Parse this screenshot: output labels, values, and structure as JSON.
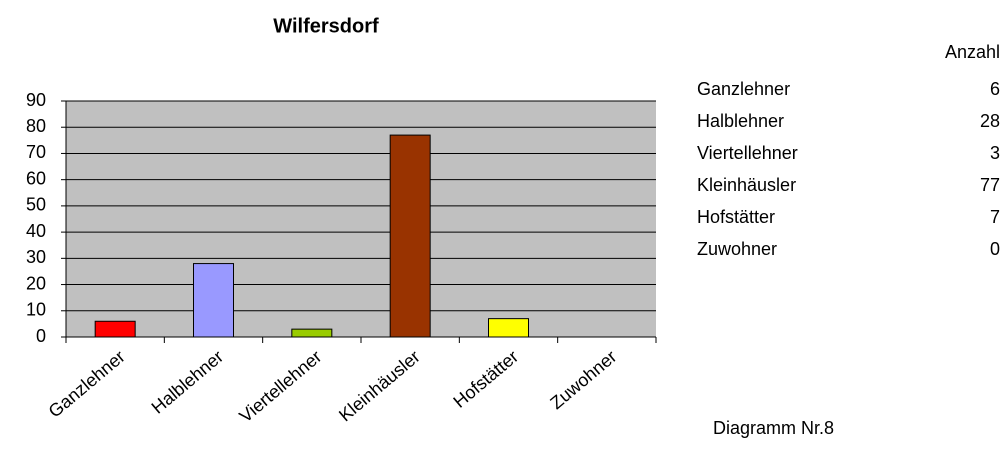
{
  "chart_data": {
    "type": "bar",
    "title": "Wilfersdorf",
    "categories": [
      "Ganzlehner",
      "Halblehner",
      "Viertellehner",
      "Kleinhäusler",
      "Hofstätter",
      "Zuwohner"
    ],
    "values": [
      6,
      28,
      3,
      77,
      7,
      0
    ],
    "colors": [
      "#ff0000",
      "#9999ff",
      "#99cc00",
      "#993300",
      "#ffff00",
      "#ccffff"
    ],
    "ylim": [
      0,
      90
    ],
    "yticks": [
      0,
      10,
      20,
      30,
      40,
      50,
      60,
      70,
      80,
      90
    ],
    "grid": true
  },
  "table_header": "Anzahl",
  "caption": "Diagramm Nr.8"
}
